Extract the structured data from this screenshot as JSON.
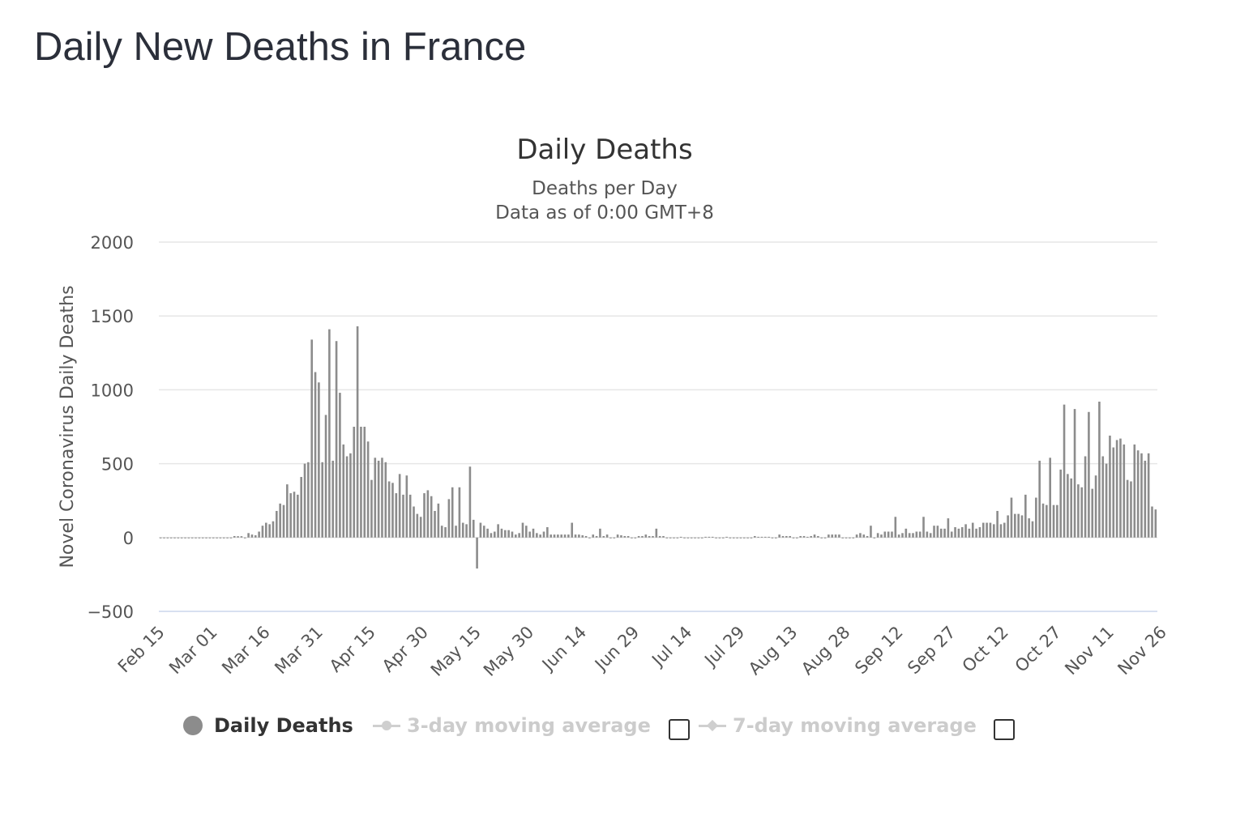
{
  "page": {
    "title": "Daily New Deaths in France"
  },
  "legend": {
    "items": [
      {
        "label": "Daily Deaths",
        "active": true
      },
      {
        "label": "3-day moving average",
        "active": false
      },
      {
        "label": "7-day moving average",
        "active": false
      }
    ]
  },
  "colors": {
    "bar": "#8c8c8c",
    "grid": "#e6e6e6",
    "title": "#2b2f3a",
    "inactive": "#cccccc"
  },
  "chart_data": {
    "type": "bar",
    "title": "Daily Deaths",
    "subtitle_lines": [
      "Deaths per Day",
      "Data as of 0:00 GMT+8"
    ],
    "xlabel": "",
    "ylabel": "Novel Coronavirus Daily Deaths",
    "ylim": [
      -500,
      2000
    ],
    "yticks": [
      2000,
      1500,
      1000,
      500,
      0,
      -500
    ],
    "x_start": "2020-02-15",
    "x_tick_labels": [
      "Feb 15",
      "Mar 01",
      "Mar 16",
      "Mar 31",
      "Apr 15",
      "Apr 30",
      "May 15",
      "May 30",
      "Jun 14",
      "Jun 29",
      "Jul 14",
      "Jul 29",
      "Aug 13",
      "Aug 28",
      "Sep 12",
      "Sep 27",
      "Oct 12",
      "Oct 27",
      "Nov 11",
      "Nov 26"
    ],
    "grid": true,
    "legend_position": "bottom",
    "series": [
      {
        "name": "Daily Deaths",
        "values": [
          0,
          0,
          0,
          0,
          0,
          0,
          0,
          0,
          0,
          0,
          0,
          0,
          0,
          0,
          0,
          0,
          0,
          0,
          0,
          0,
          0,
          10,
          9,
          9,
          0,
          30,
          20,
          15,
          40,
          80,
          100,
          90,
          110,
          180,
          230,
          220,
          360,
          300,
          310,
          290,
          410,
          500,
          510,
          1340,
          1120,
          1050,
          510,
          830,
          1410,
          520,
          1330,
          980,
          630,
          550,
          570,
          750,
          1430,
          750,
          750,
          650,
          390,
          540,
          520,
          540,
          510,
          380,
          370,
          300,
          430,
          290,
          420,
          290,
          210,
          160,
          140,
          300,
          320,
          280,
          180,
          230,
          80,
          70,
          260,
          340,
          80,
          340,
          100,
          90,
          480,
          120,
          -210,
          100,
          80,
          60,
          30,
          40,
          90,
          60,
          50,
          50,
          40,
          20,
          30,
          100,
          80,
          40,
          60,
          30,
          20,
          40,
          70,
          20,
          20,
          20,
          20,
          20,
          20,
          100,
          20,
          20,
          15,
          10,
          0,
          20,
          10,
          60,
          10,
          20,
          0,
          0,
          20,
          15,
          10,
          10,
          0,
          0,
          10,
          10,
          20,
          10,
          10,
          60,
          10,
          10,
          0,
          0,
          0,
          0,
          5,
          0,
          0,
          0,
          0,
          0,
          0,
          5,
          5,
          5,
          0,
          0,
          0,
          5,
          0,
          0,
          0,
          0,
          0,
          0,
          -5,
          10,
          5,
          5,
          5,
          5,
          0,
          0,
          20,
          10,
          10,
          10,
          0,
          0,
          10,
          10,
          5,
          10,
          20,
          10,
          0,
          0,
          20,
          20,
          20,
          20,
          -5,
          0,
          0,
          0,
          20,
          30,
          20,
          10,
          80,
          0,
          30,
          20,
          40,
          40,
          40,
          140,
          20,
          30,
          60,
          30,
          30,
          40,
          40,
          140,
          40,
          30,
          80,
          80,
          60,
          60,
          130,
          40,
          70,
          60,
          70,
          90,
          60,
          100,
          60,
          70,
          100,
          100,
          100,
          90,
          180,
          90,
          100,
          150,
          270,
          160,
          160,
          150,
          290,
          130,
          110,
          270,
          520,
          230,
          220,
          540,
          220,
          220,
          460,
          900,
          430,
          400,
          870,
          360,
          340,
          550,
          850,
          330,
          420,
          920,
          550,
          500,
          690,
          610,
          660,
          670,
          630,
          390,
          380,
          630,
          590,
          570,
          520,
          570,
          210,
          190
        ]
      }
    ]
  }
}
